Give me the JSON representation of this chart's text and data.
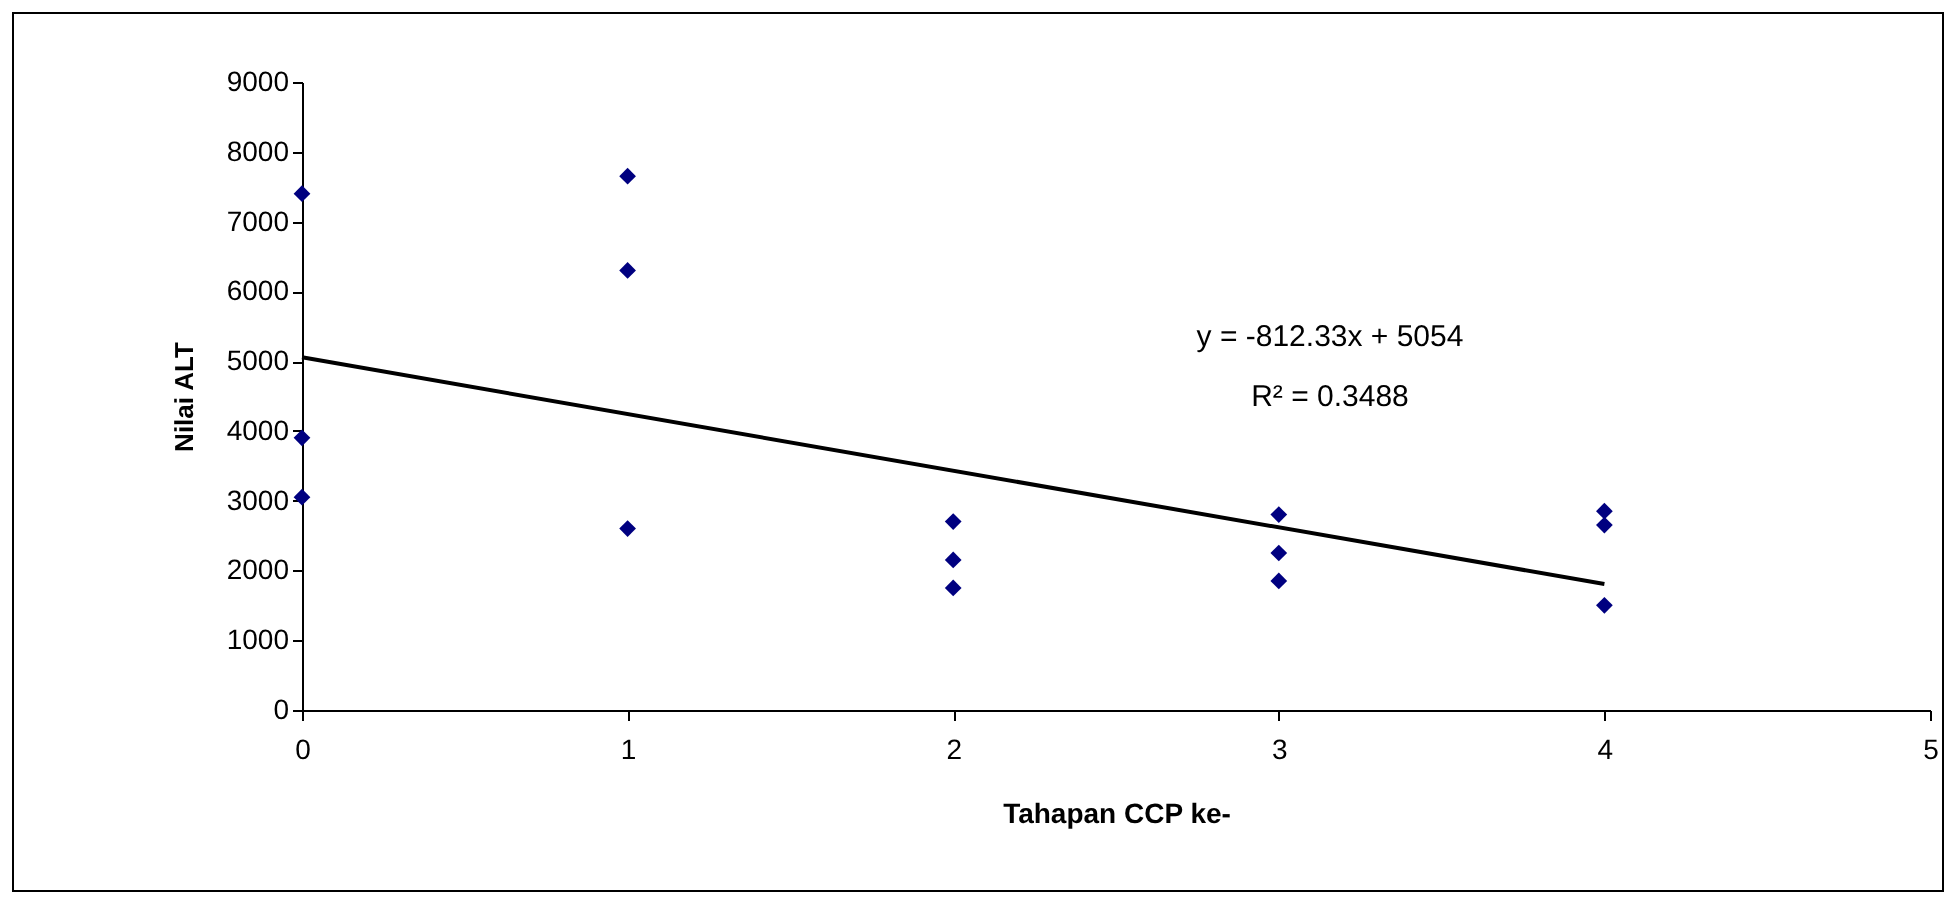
{
  "chart_data": {
    "type": "scatter",
    "xlabel": "Tahapan CCP ke-",
    "ylabel": "Nilai ALT",
    "xlim": [
      0,
      5
    ],
    "xticks": [
      0,
      1,
      2,
      3,
      4,
      5
    ],
    "ylim": [
      0,
      9000
    ],
    "yticks": [
      0,
      1000,
      2000,
      3000,
      4000,
      5000,
      6000,
      7000,
      8000,
      9000
    ],
    "grid": false,
    "annotations": [
      "y = -812.33x + 5054",
      "R² = 0.3488"
    ],
    "series": [
      {
        "color": "#000080",
        "marker": "diamond",
        "x": [
          0,
          0,
          0,
          1,
          1,
          1,
          2,
          2,
          2,
          3,
          3,
          3,
          4,
          4,
          4
        ],
        "values": [
          7400,
          3900,
          3050,
          7650,
          6300,
          2600,
          2700,
          2150,
          1750,
          2800,
          2250,
          1850,
          2850,
          2650,
          1500
        ]
      },
      {
        "type": "line",
        "color": "#000000",
        "x": [
          0,
          4
        ],
        "values": [
          5054,
          1805
        ]
      }
    ]
  }
}
